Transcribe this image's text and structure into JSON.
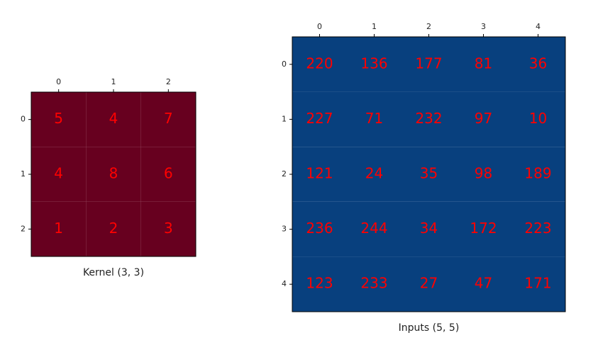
{
  "chart_data": [
    {
      "type": "heatmap",
      "xlabel": "Kernel (3, 3)",
      "color": "#67001f",
      "label_color": "#ff0000",
      "xlim": [
        -0.5,
        2.5
      ],
      "ylim": [
        2.5,
        -0.5
      ],
      "xticks": [
        0,
        1,
        2
      ],
      "yticks": [
        0,
        1,
        2
      ],
      "values": [
        [
          5,
          4,
          7
        ],
        [
          4,
          8,
          6
        ],
        [
          1,
          2,
          3
        ]
      ]
    },
    {
      "type": "heatmap",
      "xlabel": "Inputs (5, 5)",
      "color": "#08407e",
      "label_color": "#ff0000",
      "xlim": [
        -0.5,
        4.5
      ],
      "ylim": [
        4.5,
        -0.5
      ],
      "xticks": [
        0,
        1,
        2,
        3,
        4
      ],
      "yticks": [
        0,
        1,
        2,
        3,
        4
      ],
      "values": [
        [
          220,
          136,
          177,
          81,
          36
        ],
        [
          227,
          71,
          232,
          97,
          10
        ],
        [
          121,
          24,
          35,
          98,
          189
        ],
        [
          236,
          244,
          34,
          172,
          223
        ],
        [
          123,
          233,
          27,
          47,
          171
        ]
      ]
    }
  ]
}
